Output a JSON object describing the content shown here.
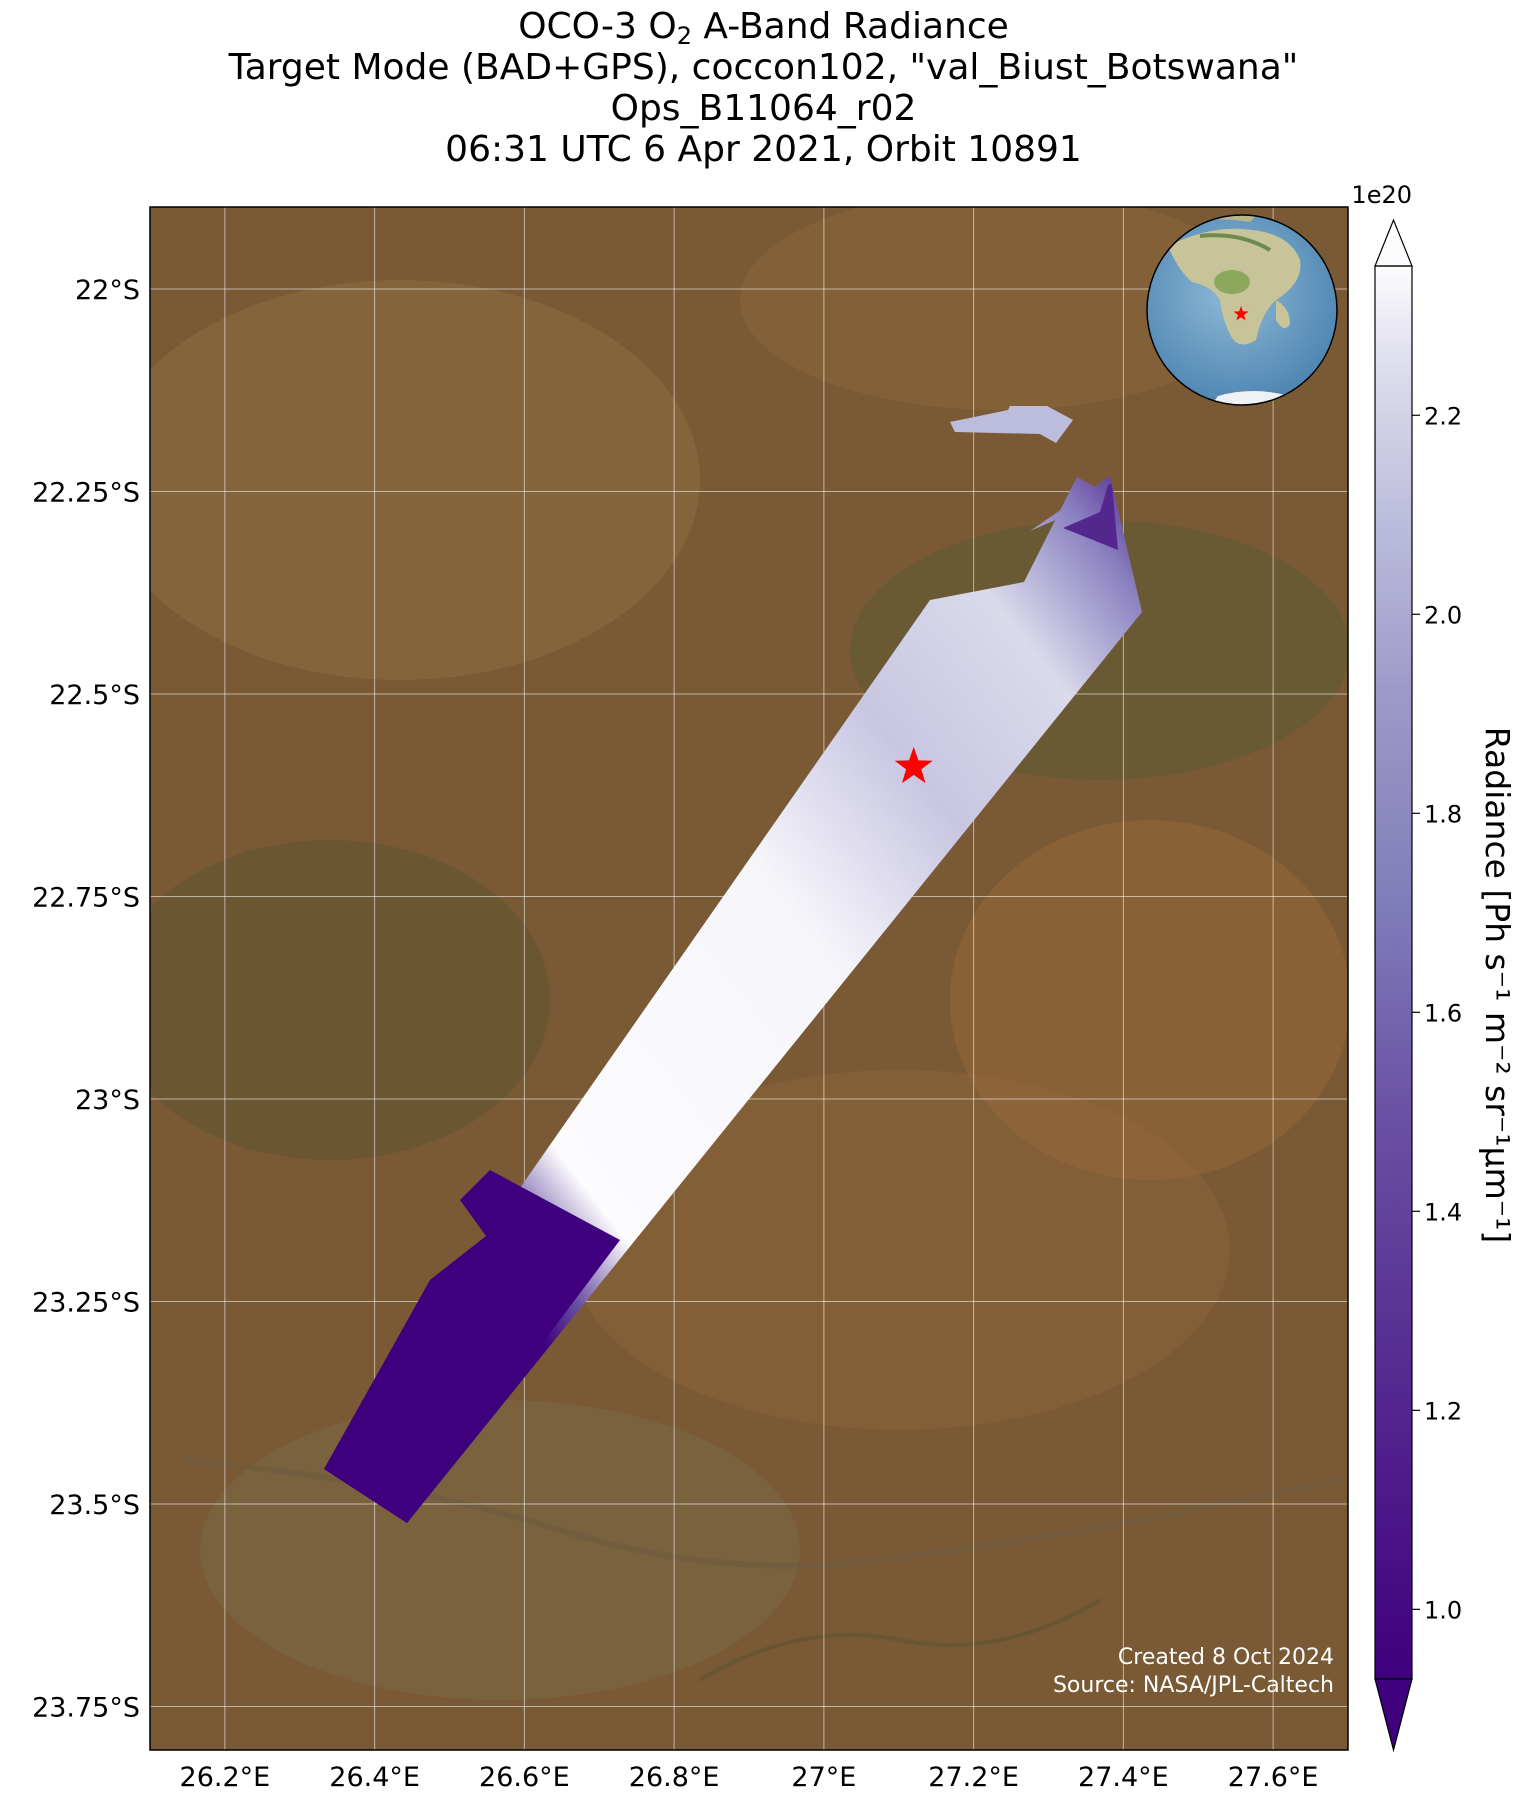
{
  "title": {
    "line1_prefix": "OCO-3 O",
    "line1_sub": "2",
    "line1_suffix": " A-Band Radiance",
    "line2": "Target Mode (BAD+GPS), coccon102, \"val_Biust_Botswana\"",
    "line3": "Ops_B11064_r02",
    "line4": "06:31 UTC 6 Apr 2021, Orbit 10891"
  },
  "map": {
    "lon_range": [
      26.1,
      26.7
    ],
    "lon_ticks": [
      26.2,
      26.4,
      26.6,
      26.8,
      27.0,
      27.2,
      27.4,
      27.6
    ],
    "lon_tick_labels": [
      "26.2°E",
      "26.4°E",
      "26.6°E",
      "26.8°E",
      "27°E",
      "27.2°E",
      "27.4°E",
      "27.6°E"
    ],
    "lat_ticks": [
      -22.0,
      -22.25,
      -22.5,
      -22.75,
      -23.0,
      -23.25,
      -23.5,
      -23.75
    ],
    "lat_tick_labels": [
      "22°S",
      "22.25°S",
      "22.5°S",
      "22.75°S",
      "23°S",
      "23.25°S",
      "23.5°S",
      "23.75°S"
    ],
    "basemap": "satellite imagery",
    "gridlines": true,
    "target": {
      "lon": 27.12,
      "lat": -22.59,
      "marker": "red-star"
    }
  },
  "colorbar": {
    "colormap": "Purples_r",
    "range": [
      0.93,
      2.35
    ],
    "ticks": [
      1.0,
      1.2,
      1.4,
      1.6,
      1.8,
      2.0,
      2.2
    ],
    "tick_labels": [
      "1.0",
      "1.2",
      "1.4",
      "1.6",
      "1.8",
      "2.0",
      "2.2"
    ],
    "multiplier": "1e20",
    "label": "Radiance [Ph s⁻¹ m⁻² sr⁻¹μm⁻¹]",
    "extend": "both"
  },
  "credits": {
    "created": "Created 8 Oct 2024",
    "source": "Source: NASA/JPL-Caltech"
  },
  "inset": {
    "type": "globe",
    "marker": "red-star",
    "region": "southern Africa"
  },
  "colors": {
    "swath_low": "#3f007d",
    "swath_high": "#fcfbfd",
    "star": "#ff0000"
  }
}
